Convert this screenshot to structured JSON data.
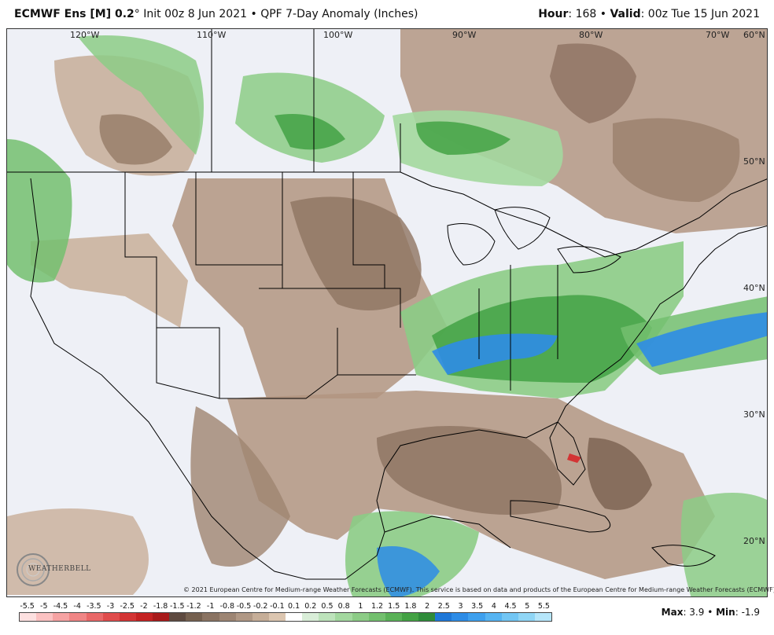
{
  "header": {
    "model": "ECMWF Ens [M] 0.2",
    "degree": "°",
    "init": " Init 00z 8 Jun 2021",
    "sep": " • ",
    "product": "QPF 7-Day Anomaly (Inches)",
    "hour_label": "Hour",
    "hour_value": ": 168",
    "valid_label": "Valid",
    "valid_value": ": 00z Tue 15 Jun 2021"
  },
  "map": {
    "longitude_labels": [
      "120°W",
      "110°W",
      "100°W",
      "90°W",
      "80°W",
      "70°W"
    ],
    "latitude_labels": [
      "60°N",
      "50°N",
      "40°N",
      "30°N",
      "20°N"
    ]
  },
  "copyright": "© 2021 European Centre for Medium-range Weather Forecasts (ECMWF). This service is based on data and products of the European Centre for Medium-range Weather Forecasts (ECMWF).",
  "logo": {
    "text": "WEATHERBELL"
  },
  "legend": {
    "labels": [
      "-5.5",
      "-5",
      "-4.5",
      "-4",
      "-3.5",
      "-3",
      "-2.5",
      "-2",
      "-1.8",
      "-1.5",
      "-1.2",
      "-1",
      "-0.8",
      "-0.5",
      "-0.2",
      "-0.1",
      "0.1",
      "0.2",
      "0.5",
      "0.8",
      "1",
      "1.2",
      "1.5",
      "1.8",
      "2",
      "2.5",
      "3",
      "3.5",
      "4",
      "4.5",
      "5",
      "5.5"
    ],
    "colors": [
      "#fde0e0",
      "#fbc2c2",
      "#f6a3a3",
      "#f08585",
      "#e96868",
      "#e04c4c",
      "#d33434",
      "#c42222",
      "#a81a1a",
      "#5e4a40",
      "#75604f",
      "#8a7362",
      "#9d8573",
      "#b09885",
      "#c6ae98",
      "#dcc6b0",
      "#ffffff",
      "#d9eed8",
      "#bde3bb",
      "#a3d89f",
      "#8ccc86",
      "#73c06e",
      "#5ab257",
      "#43a244",
      "#2f8c3a",
      "#1f78d8",
      "#2d8ce6",
      "#3ea0ee",
      "#56b4f2",
      "#72c6f4",
      "#90d6f6",
      "#b6e6fa"
    ]
  },
  "stats": {
    "max_label": "Max",
    "max_value": ": 3.9",
    "sep": " • ",
    "min_label": "Min",
    "min_value": ": -1.9"
  }
}
